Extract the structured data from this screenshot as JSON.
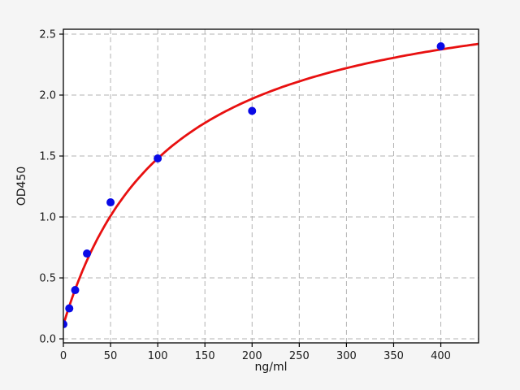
{
  "chart_data": {
    "type": "scatter",
    "title": "",
    "xlabel": "ng/ml",
    "ylabel": "OD450",
    "xlim": [
      0,
      440
    ],
    "ylim": [
      -0.033,
      2.54
    ],
    "grid": true,
    "x_ticks": [
      0,
      50,
      100,
      150,
      200,
      250,
      300,
      350,
      400
    ],
    "x_tick_labels": [
      "0",
      "50",
      "100",
      "150",
      "200",
      "250",
      "300",
      "350",
      "400"
    ],
    "y_ticks": [
      0.0,
      0.5,
      1.0,
      1.5,
      2.0,
      2.5
    ],
    "y_tick_labels": [
      "0.0",
      "0.5",
      "1.0",
      "1.5",
      "2.0",
      "2.5"
    ],
    "series": [
      {
        "name": "standard-points",
        "type": "scatter",
        "x": [
          0,
          6.25,
          12.5,
          25,
          50,
          100,
          200,
          400
        ],
        "y": [
          0.12,
          0.25,
          0.4,
          0.7,
          1.12,
          1.48,
          1.87,
          2.4
        ],
        "marker_radius_px": 5
      },
      {
        "name": "fit-curve",
        "type": "line",
        "model": "saturation",
        "params": {
          "vmax": 2.89,
          "km": 111.7,
          "y0": 0.115
        },
        "x_range": [
          0,
          440
        ]
      }
    ],
    "colors": {
      "points": "#0a0ae6",
      "curve": "#e81010",
      "grid": "#b3b3b3",
      "figure_bg": "#f5f5f5",
      "plot_bg": "#ffffff",
      "spine": "#000000",
      "tick_text": "#1a1a1a"
    }
  }
}
